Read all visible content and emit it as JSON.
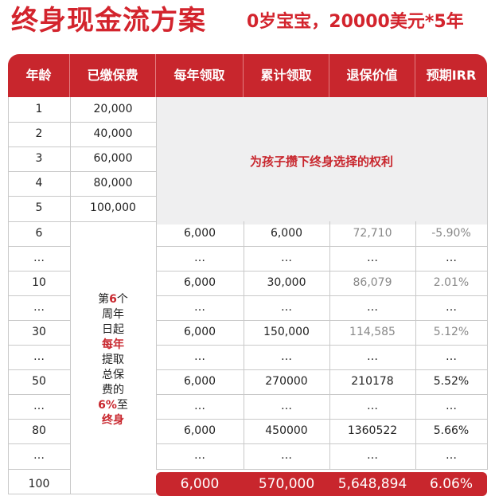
{
  "title": "终身现金流方案",
  "subtitle": "0岁宝宝，20000美元*5年",
  "headers": [
    "年龄",
    "已缴保费",
    "每年领取",
    "累计领取",
    "退保价值",
    "预期IRR"
  ],
  "merged_note": "为孩子攒下终身选择的权利",
  "side_note": {
    "l1": "第",
    "l1_red": "6",
    "l1_end": "个",
    "l2": "周年",
    "l3": "日起",
    "l4_red": "每年",
    "l5": "提取",
    "l6": "总保",
    "l7": "费的",
    "l8_red": "6%",
    "l8_end": "至",
    "l9_red": "终身"
  },
  "premium_rows": [
    {
      "age": "1",
      "paid": "20,000"
    },
    {
      "age": "2",
      "paid": "40,000"
    },
    {
      "age": "3",
      "paid": "60,000"
    },
    {
      "age": "4",
      "paid": "80,000"
    },
    {
      "age": "5",
      "paid": "100,000"
    }
  ],
  "payout_rows": [
    {
      "age": "6",
      "annual": "6,000",
      "cumulative": "6,000",
      "surrender": "72,710",
      "irr": "-5.90%"
    },
    {
      "age": "…",
      "annual": "…",
      "cumulative": "…",
      "surrender": "…",
      "irr": "…"
    },
    {
      "age": "10",
      "annual": "6,000",
      "cumulative": "30,000",
      "surrender": "86,079",
      "irr": "2.01%"
    },
    {
      "age": "…",
      "annual": "…",
      "cumulative": "…",
      "surrender": "…",
      "irr": "…"
    },
    {
      "age": "30",
      "annual": "6,000",
      "cumulative": "150,000",
      "surrender": "114,585",
      "irr": "5.12%"
    },
    {
      "age": "…",
      "annual": "…",
      "cumulative": "…",
      "surrender": "…",
      "irr": "…"
    },
    {
      "age": "50",
      "annual": "6,000",
      "cumulative": "270000",
      "surrender": "210178",
      "irr": "5.52%"
    },
    {
      "age": "…",
      "annual": "…",
      "cumulative": "…",
      "surrender": "…",
      "irr": "…"
    },
    {
      "age": "80",
      "annual": "6,000",
      "cumulative": "450000",
      "surrender": "1360522",
      "irr": "5.66%"
    },
    {
      "age": "…",
      "annual": "…",
      "cumulative": "…",
      "surrender": "…",
      "irr": "…"
    }
  ],
  "final_row": {
    "age": "100",
    "annual": "6,000",
    "cumulative": "570,000",
    "surrender": "5,648,894",
    "irr": "6.06%"
  },
  "colors": {
    "accent": "#c8262d",
    "merged_bg": "#efeff0",
    "muted_text": "#888888"
  }
}
